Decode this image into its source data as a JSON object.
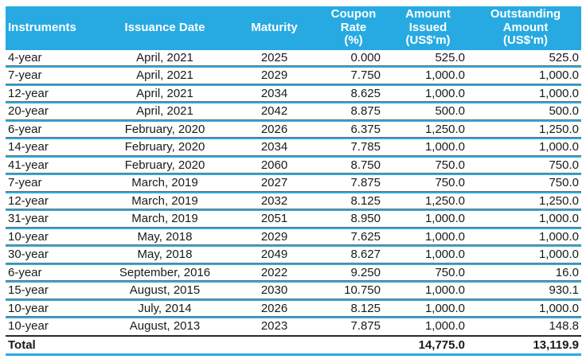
{
  "colors": {
    "header_bg": "#27AAE1",
    "header_text": "#ffffff",
    "row_line": "#29ABE2",
    "row_line_edge": "#6d6e71",
    "total_top_line": "#2b2a2a",
    "body_text": "#1a1a1a"
  },
  "table": {
    "columns": [
      "Instruments",
      "Issuance Date",
      "Maturity",
      "Coupon\nRate\n(%)",
      "Amount\nIssued\n(US$'m)",
      "Outstanding\nAmount\n(US$'m)"
    ],
    "rows": [
      [
        "4-year",
        "April, 2021",
        "2025",
        "0.000",
        "525.0",
        "525.0"
      ],
      [
        "7-year",
        "April, 2021",
        "2029",
        "7.750",
        "1,000.0",
        "1,000.0"
      ],
      [
        "12-year",
        "April, 2021",
        "2034",
        "8.625",
        "1,000.0",
        "1,000.0"
      ],
      [
        "20-year",
        "April, 2021",
        "2042",
        "8.875",
        "500.0",
        "500.0"
      ],
      [
        "6-year",
        "February, 2020",
        "2026",
        "6.375",
        "1,250.0",
        "1,250.0"
      ],
      [
        "14-year",
        "February, 2020",
        "2034",
        "7.785",
        "1,000.0",
        "1,000.0"
      ],
      [
        "41-year",
        "February, 2020",
        "2060",
        "8.750",
        "750.0",
        "750.0"
      ],
      [
        "7-year",
        "March, 2019",
        "2027",
        "7.875",
        "750.0",
        "750.0"
      ],
      [
        "12-year",
        "March, 2019",
        "2032",
        "8.125",
        "1,250.0",
        "1,250.0"
      ],
      [
        "31-year",
        "March, 2019",
        "2051",
        "8.950",
        "1,000.0",
        "1,000.0"
      ],
      [
        "10-year",
        "May, 2018",
        "2029",
        "7.625",
        "1,000.0",
        "1,000.0"
      ],
      [
        "30-year",
        "May, 2018",
        "2049",
        "8.627",
        "1,000.0",
        "1,000.0"
      ],
      [
        "6-year",
        "September, 2016",
        "2022",
        "9.250",
        "750.0",
        "16.0"
      ],
      [
        "15-year",
        "August, 2015",
        "2030",
        "10.750",
        "1,000.0",
        "930.1"
      ],
      [
        "10-year",
        "July, 2014",
        "2026",
        "8.125",
        "1,000.0",
        "1,000.0"
      ],
      [
        "10-year",
        "August, 2013",
        "2023",
        "7.875",
        "1,000.0",
        "148.8"
      ]
    ],
    "total_row": [
      "Total",
      "",
      "",
      "",
      "14,775.0",
      "13,119.9"
    ]
  }
}
